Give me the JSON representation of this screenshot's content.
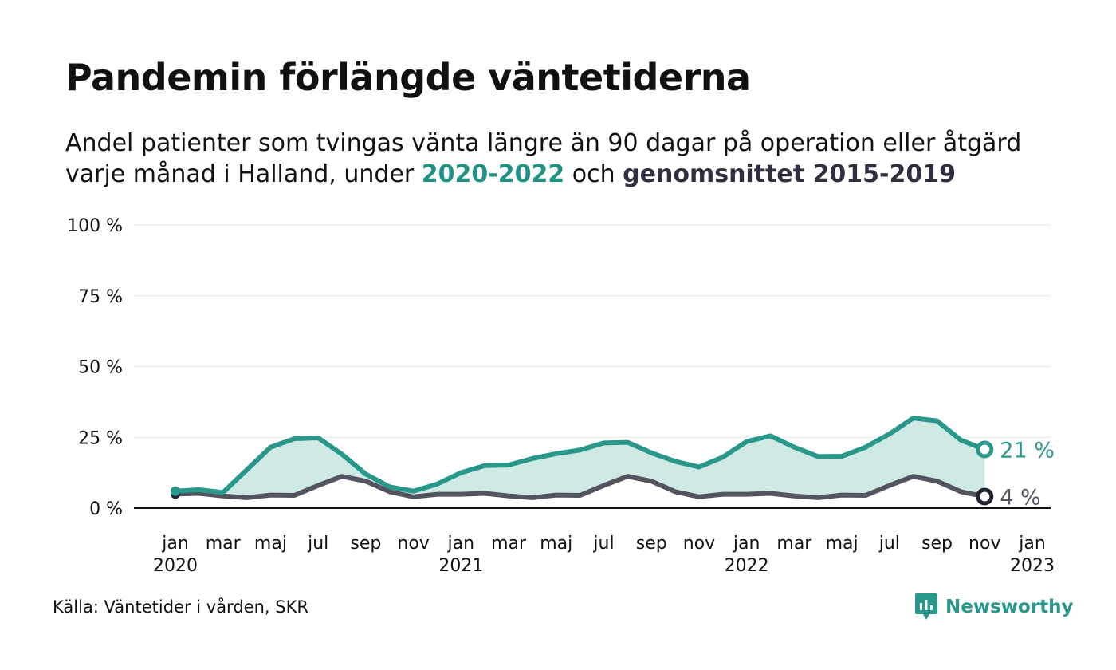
{
  "header": {
    "title": "Pandemin förlängde väntetiderna",
    "subtitle_line1": "Andel patienter som tvingas vänta längre än 90 dagar på operation eller åtgärd",
    "subtitle_line2_pre": "varje månad i Halland, under ",
    "subtitle_series1": "2020-2022",
    "subtitle_mid": " och ",
    "subtitle_series2": "genomsnittet 2015-2019"
  },
  "footer": {
    "source": "Källa: Väntetider i vården, SKR",
    "brand": "Newsworthy"
  },
  "colors": {
    "series_current": "#2a978b",
    "series_current_fill": "#cfe9e4",
    "series_average": "#545461",
    "grid": "#e6e6e6",
    "baseline": "#111111"
  },
  "icons": {
    "brand_logo": "bar-chart-speech-bubble-icon"
  },
  "chart_data": {
    "type": "area",
    "ylim": [
      0,
      100
    ],
    "y_ticks": [
      0,
      25,
      50,
      75,
      100
    ],
    "y_tick_labels": [
      "0 %",
      "25 %",
      "50 %",
      "75 %",
      "100 %"
    ],
    "x_range": [
      "2020-01",
      "2023-01"
    ],
    "x_ticks": [
      {
        "month": "2020-01",
        "label": "jan",
        "year": "2020"
      },
      {
        "month": "2020-03",
        "label": "mar",
        "year": ""
      },
      {
        "month": "2020-05",
        "label": "maj",
        "year": ""
      },
      {
        "month": "2020-07",
        "label": "jul",
        "year": ""
      },
      {
        "month": "2020-09",
        "label": "sep",
        "year": ""
      },
      {
        "month": "2020-11",
        "label": "nov",
        "year": ""
      },
      {
        "month": "2021-01",
        "label": "jan",
        "year": "2021"
      },
      {
        "month": "2021-03",
        "label": "mar",
        "year": ""
      },
      {
        "month": "2021-05",
        "label": "maj",
        "year": ""
      },
      {
        "month": "2021-07",
        "label": "jul",
        "year": ""
      },
      {
        "month": "2021-09",
        "label": "sep",
        "year": ""
      },
      {
        "month": "2021-11",
        "label": "nov",
        "year": ""
      },
      {
        "month": "2022-01",
        "label": "jan",
        "year": "2022"
      },
      {
        "month": "2022-03",
        "label": "mar",
        "year": ""
      },
      {
        "month": "2022-05",
        "label": "maj",
        "year": ""
      },
      {
        "month": "2022-07",
        "label": "jul",
        "year": ""
      },
      {
        "month": "2022-09",
        "label": "sep",
        "year": ""
      },
      {
        "month": "2022-11",
        "label": "nov",
        "year": ""
      },
      {
        "month": "2023-01",
        "label": "jan",
        "year": "2023"
      }
    ],
    "x": [
      "2020-01",
      "2020-02",
      "2020-03",
      "2020-04",
      "2020-05",
      "2020-06",
      "2020-07",
      "2020-08",
      "2020-09",
      "2020-10",
      "2020-11",
      "2020-12",
      "2021-01",
      "2021-02",
      "2021-03",
      "2021-04",
      "2021-05",
      "2021-06",
      "2021-07",
      "2021-08",
      "2021-09",
      "2021-10",
      "2021-11",
      "2021-12",
      "2022-01",
      "2022-02",
      "2022-03",
      "2022-04",
      "2022-05",
      "2022-06",
      "2022-07",
      "2022-08",
      "2022-09",
      "2022-10",
      "2022-11"
    ],
    "series": [
      {
        "name": "2020-2022",
        "values": [
          6,
          6.5,
          5.5,
          13.5,
          21.5,
          24.5,
          24.8,
          19,
          12,
          7.5,
          6,
          8.5,
          12.5,
          15,
          15.2,
          17.5,
          19.2,
          20.5,
          23,
          23.2,
          19.5,
          16.5,
          14.5,
          18,
          23.5,
          25.5,
          21.5,
          18.2,
          18.3,
          21.5,
          26.2,
          31.8,
          30.8,
          24,
          20.7
        ],
        "end_label": "21 %"
      },
      {
        "name": "genomsnittet 2015-2019",
        "values": [
          5,
          5.2,
          4.3,
          3.7,
          4.6,
          4.5,
          8,
          11.2,
          9.5,
          5.8,
          4,
          4.9,
          4.9,
          5.2,
          4.3,
          3.7,
          4.6,
          4.5,
          8,
          11.2,
          9.5,
          5.8,
          4,
          4.9,
          4.9,
          5.2,
          4.3,
          3.7,
          4.6,
          4.5,
          8,
          11.2,
          9.5,
          5.8,
          4.1
        ],
        "end_label": "4 %"
      }
    ],
    "grid": true,
    "legend": "none"
  }
}
